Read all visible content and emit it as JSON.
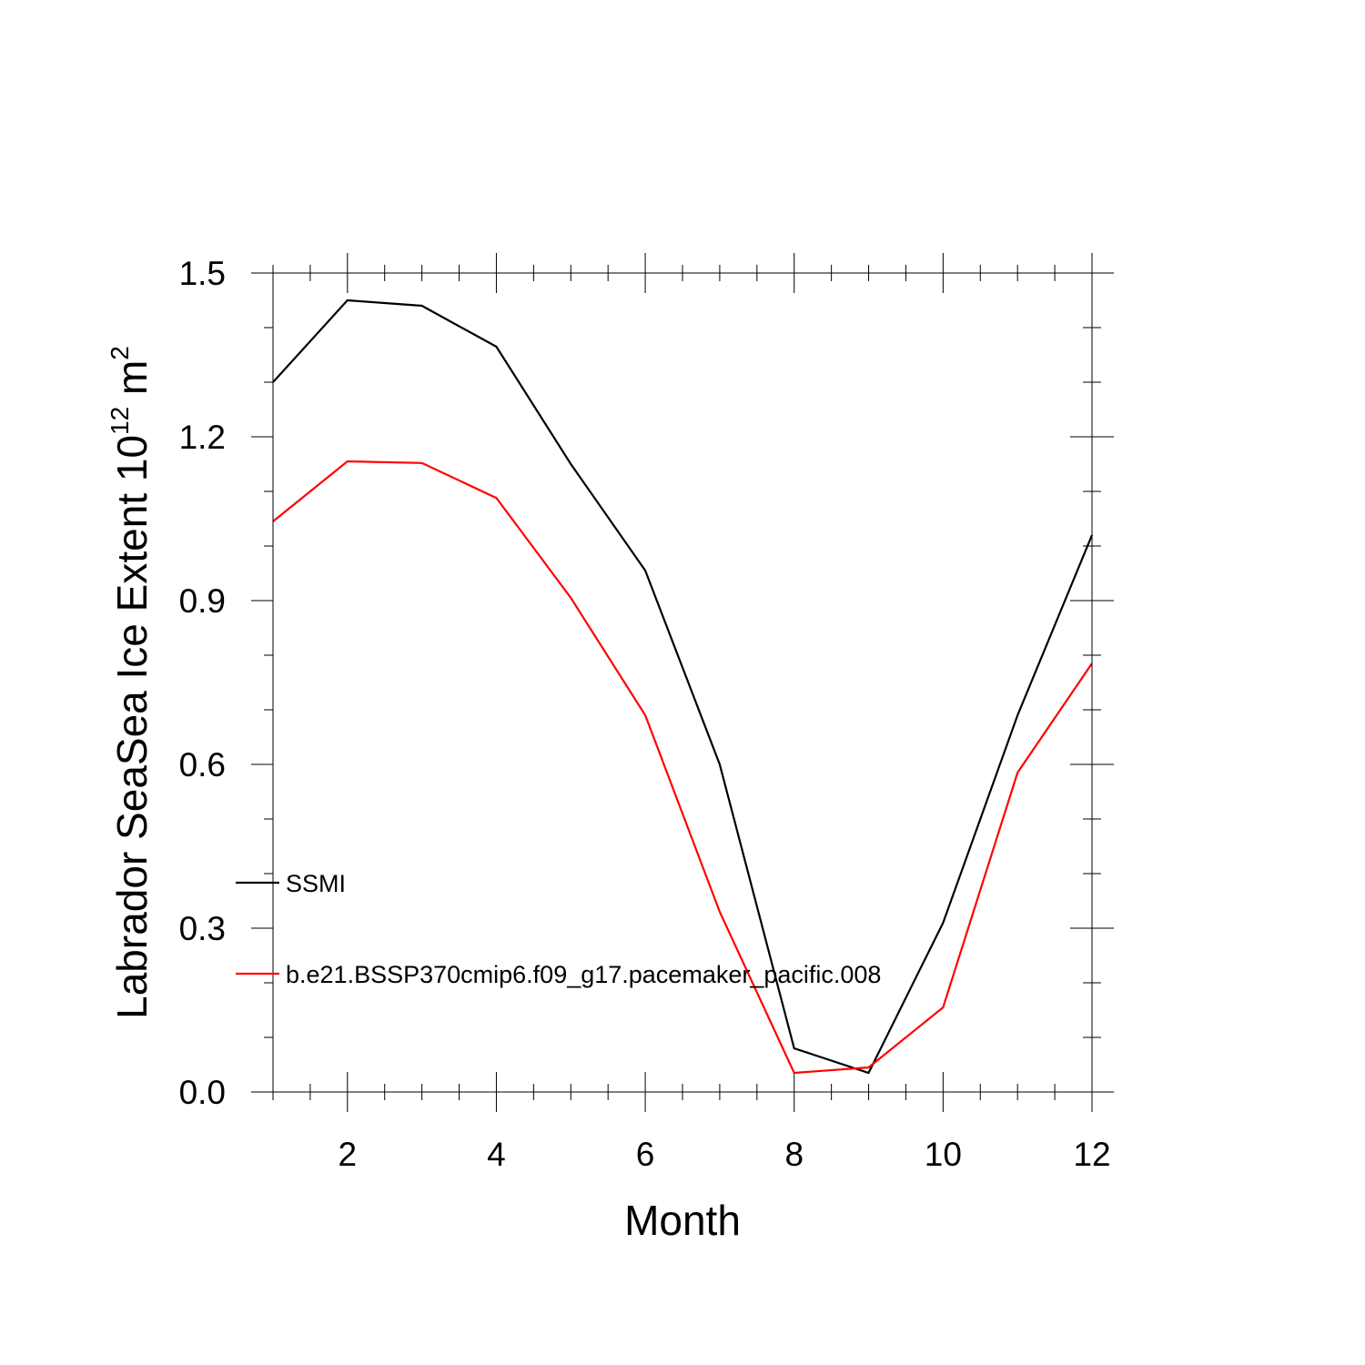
{
  "chart_data": {
    "type": "line",
    "title": "",
    "xlabel": "Month",
    "ylabel_text": "Labrador SeaSea Ice Extent 10",
    "ylabel_exp1": "12",
    "ylabel_unit": " m",
    "ylabel_exp2": "2",
    "xlim": [
      1,
      12
    ],
    "ylim": [
      0,
      1.5
    ],
    "x_ticks": [
      2,
      4,
      6,
      8,
      10,
      12
    ],
    "y_ticks": [
      0.0,
      0.3,
      0.6,
      0.9,
      1.2,
      1.5
    ],
    "y_tick_labels": [
      "0.0",
      "0.3",
      "0.6",
      "0.9",
      "1.2",
      "1.5"
    ],
    "x": [
      1,
      2,
      3,
      4,
      5,
      6,
      7,
      8,
      9,
      10,
      11,
      12
    ],
    "series": [
      {
        "name": "SSMI",
        "color": "#000000",
        "values": [
          1.3,
          1.45,
          1.44,
          1.365,
          1.15,
          0.955,
          0.6,
          0.08,
          0.035,
          0.31,
          0.69,
          1.02
        ]
      },
      {
        "name": "b.e21.BSSP370cmip6.f09_g17.pacemaker_pacific.008",
        "color": "#ff0000",
        "values": [
          1.045,
          1.155,
          1.152,
          1.088,
          0.905,
          0.69,
          0.33,
          0.035,
          0.045,
          0.155,
          0.585,
          0.785
        ]
      }
    ],
    "legend_position": "lower-left"
  }
}
